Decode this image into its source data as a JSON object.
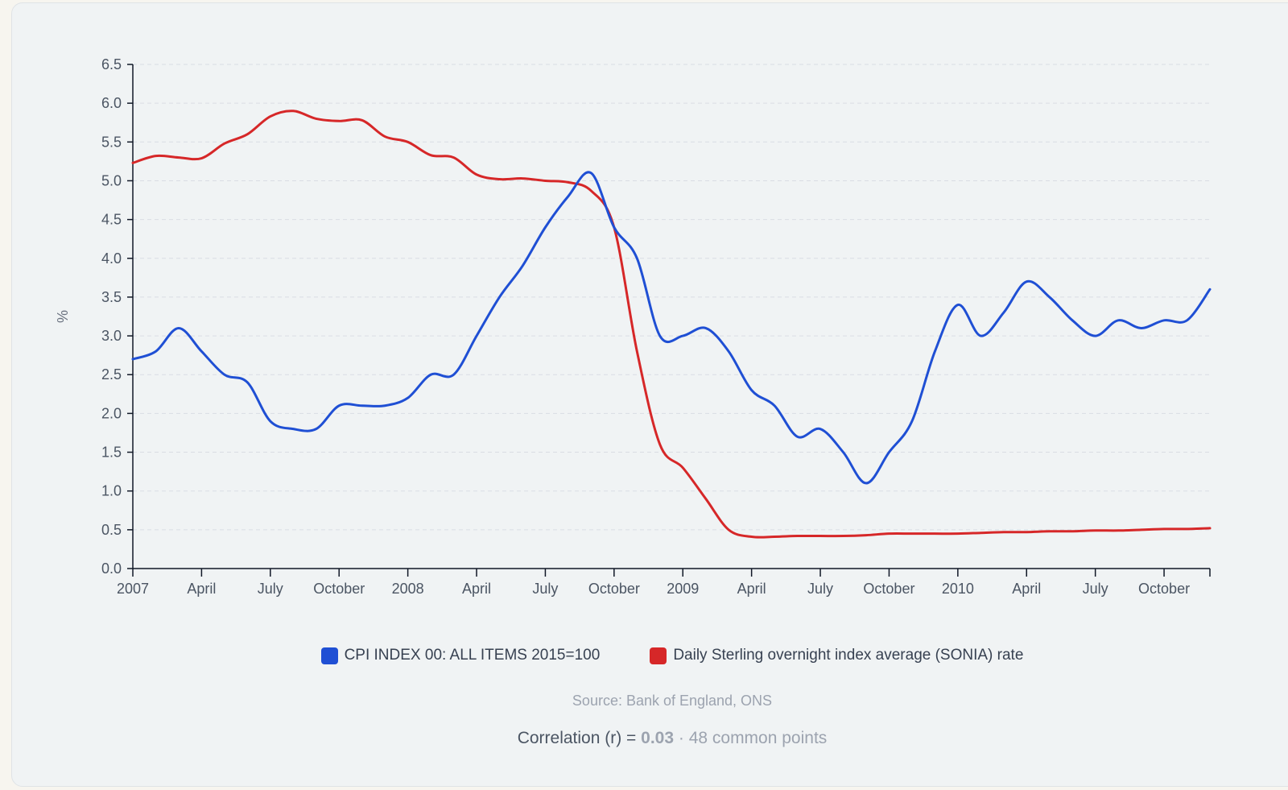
{
  "colors": {
    "cpi": "#1f4fd4",
    "sonia": "#d62728",
    "axis": "#111827",
    "grid": "#d9dde3"
  },
  "legend": {
    "cpi_label": "CPI INDEX 00: ALL ITEMS 2015=100",
    "sonia_label": "Daily Sterling overnight index average (SONIA) rate"
  },
  "source": "Source: Bank of England, ONS",
  "correlation": {
    "prefix": "Correlation (r) = ",
    "value": "0.03",
    "suffix": " · 48 common points"
  },
  "chart_data": {
    "type": "line",
    "title": "",
    "xlabel": "",
    "ylabel": "%",
    "ylim": [
      0,
      6.5
    ],
    "y_ticks": [
      "0.0",
      "0.5",
      "1.0",
      "1.5",
      "2.0",
      "2.5",
      "3.0",
      "3.5",
      "4.0",
      "4.5",
      "5.0",
      "5.5",
      "6.0",
      "6.5"
    ],
    "x_range": [
      "2007-01",
      "2010-12"
    ],
    "x_ticks": [
      {
        "date": "2007-01",
        "label": "2007"
      },
      {
        "date": "2007-04",
        "label": "April"
      },
      {
        "date": "2007-07",
        "label": "July"
      },
      {
        "date": "2007-10",
        "label": "October"
      },
      {
        "date": "2008-01",
        "label": "2008"
      },
      {
        "date": "2008-04",
        "label": "April"
      },
      {
        "date": "2008-07",
        "label": "July"
      },
      {
        "date": "2008-10",
        "label": "October"
      },
      {
        "date": "2009-01",
        "label": "2009"
      },
      {
        "date": "2009-04",
        "label": "April"
      },
      {
        "date": "2009-07",
        "label": "July"
      },
      {
        "date": "2009-10",
        "label": "October"
      },
      {
        "date": "2010-01",
        "label": "2010"
      },
      {
        "date": "2010-04",
        "label": "April"
      },
      {
        "date": "2010-07",
        "label": "July"
      },
      {
        "date": "2010-10",
        "label": "October"
      }
    ],
    "grid": true,
    "legend_position": "bottom",
    "series": [
      {
        "name": "CPI INDEX 00: ALL ITEMS 2015=100",
        "color": "#1f4fd4",
        "points": [
          [
            "2007-01",
            2.7
          ],
          [
            "2007-02",
            2.8
          ],
          [
            "2007-03",
            3.1
          ],
          [
            "2007-04",
            2.8
          ],
          [
            "2007-05",
            2.5
          ],
          [
            "2007-06",
            2.4
          ],
          [
            "2007-07",
            1.9
          ],
          [
            "2007-08",
            1.8
          ],
          [
            "2007-09",
            1.8
          ],
          [
            "2007-10",
            2.1
          ],
          [
            "2007-11",
            2.1
          ],
          [
            "2007-12",
            2.1
          ],
          [
            "2008-01",
            2.2
          ],
          [
            "2008-02",
            2.5
          ],
          [
            "2008-03",
            2.5
          ],
          [
            "2008-04",
            3.0
          ],
          [
            "2008-05",
            3.5
          ],
          [
            "2008-06",
            3.9
          ],
          [
            "2008-07",
            4.4
          ],
          [
            "2008-08",
            4.8
          ],
          [
            "2008-09",
            5.1
          ],
          [
            "2008-10",
            4.4
          ],
          [
            "2008-11",
            4.0
          ],
          [
            "2008-12",
            3.0
          ],
          [
            "2009-01",
            3.0
          ],
          [
            "2009-02",
            3.1
          ],
          [
            "2009-03",
            2.8
          ],
          [
            "2009-04",
            2.3
          ],
          [
            "2009-05",
            2.1
          ],
          [
            "2009-06",
            1.7
          ],
          [
            "2009-07",
            1.8
          ],
          [
            "2009-08",
            1.5
          ],
          [
            "2009-09",
            1.1
          ],
          [
            "2009-10",
            1.5
          ],
          [
            "2009-11",
            1.9
          ],
          [
            "2009-12",
            2.8
          ],
          [
            "2010-01",
            3.4
          ],
          [
            "2010-02",
            3.0
          ],
          [
            "2010-03",
            3.3
          ],
          [
            "2010-04",
            3.7
          ],
          [
            "2010-05",
            3.5
          ],
          [
            "2010-06",
            3.2
          ],
          [
            "2010-07",
            3.0
          ],
          [
            "2010-08",
            3.2
          ],
          [
            "2010-09",
            3.1
          ],
          [
            "2010-10",
            3.2
          ],
          [
            "2010-11",
            3.2
          ],
          [
            "2010-12",
            3.6
          ]
        ]
      },
      {
        "name": "Daily Sterling overnight index average (SONIA) rate",
        "color": "#d62728",
        "points": [
          [
            "2007-01",
            5.23
          ],
          [
            "2007-02",
            5.32
          ],
          [
            "2007-03",
            5.3
          ],
          [
            "2007-04",
            5.29
          ],
          [
            "2007-05",
            5.48
          ],
          [
            "2007-06",
            5.6
          ],
          [
            "2007-07",
            5.83
          ],
          [
            "2007-08",
            5.9
          ],
          [
            "2007-09",
            5.8
          ],
          [
            "2007-10",
            5.77
          ],
          [
            "2007-11",
            5.78
          ],
          [
            "2007-12",
            5.57
          ],
          [
            "2008-01",
            5.5
          ],
          [
            "2008-02",
            5.33
          ],
          [
            "2008-03",
            5.3
          ],
          [
            "2008-04",
            5.08
          ],
          [
            "2008-05",
            5.02
          ],
          [
            "2008-06",
            5.03
          ],
          [
            "2008-07",
            5.0
          ],
          [
            "2008-08",
            4.98
          ],
          [
            "2008-09",
            4.87
          ],
          [
            "2008-10",
            4.4
          ],
          [
            "2008-11",
            2.8
          ],
          [
            "2008-12",
            1.6
          ],
          [
            "2009-01",
            1.3
          ],
          [
            "2009-02",
            0.9
          ],
          [
            "2009-03",
            0.5
          ],
          [
            "2009-04",
            0.41
          ],
          [
            "2009-05",
            0.41
          ],
          [
            "2009-06",
            0.42
          ],
          [
            "2009-07",
            0.42
          ],
          [
            "2009-08",
            0.42
          ],
          [
            "2009-09",
            0.43
          ],
          [
            "2009-10",
            0.45
          ],
          [
            "2009-11",
            0.45
          ],
          [
            "2009-12",
            0.45
          ],
          [
            "2010-01",
            0.45
          ],
          [
            "2010-02",
            0.46
          ],
          [
            "2010-03",
            0.47
          ],
          [
            "2010-04",
            0.47
          ],
          [
            "2010-05",
            0.48
          ],
          [
            "2010-06",
            0.48
          ],
          [
            "2010-07",
            0.49
          ],
          [
            "2010-08",
            0.49
          ],
          [
            "2010-09",
            0.5
          ],
          [
            "2010-10",
            0.51
          ],
          [
            "2010-11",
            0.51
          ],
          [
            "2010-12",
            0.52
          ]
        ]
      }
    ]
  }
}
